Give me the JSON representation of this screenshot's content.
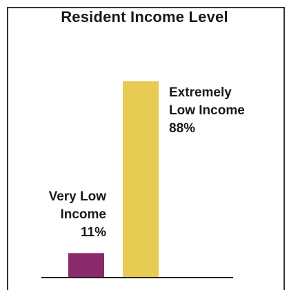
{
  "chart_data": {
    "type": "bar",
    "title": "Resident Income Level",
    "xlabel": "",
    "ylabel": "",
    "ylim": [
      0,
      100
    ],
    "grid": false,
    "categories": [
      "Very Low Income",
      "Extremely Low Income"
    ],
    "values": [
      11,
      88
    ],
    "data_labels": [
      [
        "Very Low",
        "Income",
        "11%"
      ],
      [
        "Extremely",
        "Low Income",
        "88%"
      ]
    ],
    "colors": [
      "#8B2A6A",
      "#E8CB52"
    ],
    "axis_color": "#222222"
  }
}
